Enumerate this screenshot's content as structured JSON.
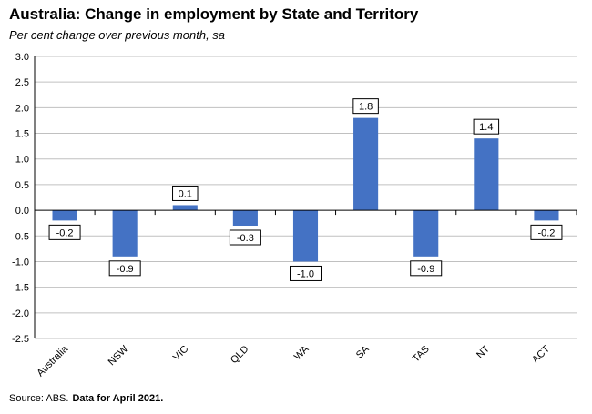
{
  "title": "Australia: Change in employment by State and Territory",
  "subtitle": "Per cent change over previous month, sa",
  "source": {
    "label": "Source: ABS.",
    "note": "Data for April 2021."
  },
  "chart_data": {
    "type": "bar",
    "categories": [
      "Australia",
      "NSW",
      "VIC",
      "QLD",
      "WA",
      "SA",
      "TAS",
      "NT",
      "ACT"
    ],
    "values": [
      -0.2,
      -0.9,
      0.1,
      -0.3,
      -1.0,
      1.8,
      -0.9,
      1.4,
      -0.2
    ],
    "data_labels": [
      "-0.2",
      "-0.9",
      "0.1",
      "-0.3",
      "-1.0",
      "1.8",
      "-0.9",
      "1.4",
      "-0.2"
    ],
    "ylim": [
      -2.5,
      3.0
    ],
    "yticks": [
      3.0,
      2.5,
      2.0,
      1.5,
      1.0,
      0.5,
      0.0,
      -0.5,
      -1.0,
      -1.5,
      -2.0,
      -2.5
    ],
    "ytick_labels": [
      "3.0",
      "2.5",
      "2.0",
      "1.5",
      "1.0",
      "0.5",
      "0.0",
      "-0.5",
      "-1.0",
      "-1.5",
      "-2.0",
      "-2.5"
    ],
    "grid": true,
    "bar_color": "#4472C4",
    "xlabel": "",
    "ylabel": ""
  }
}
